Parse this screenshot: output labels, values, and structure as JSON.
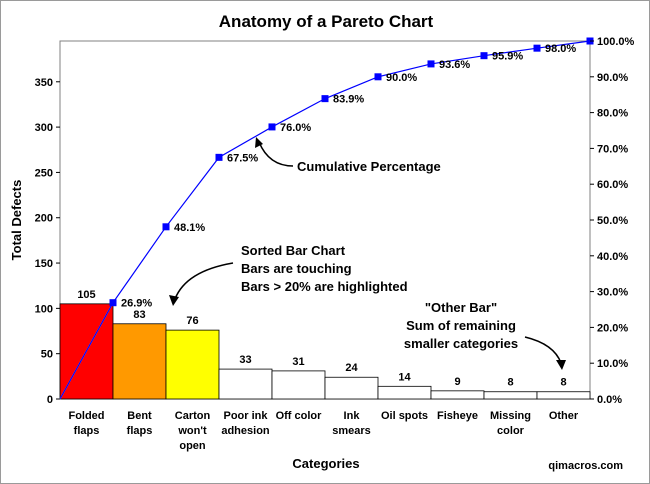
{
  "chart_data": {
    "type": "bar",
    "title": "Anatomy of a Pareto Chart",
    "xlabel": "Categories",
    "ylabel": "Total Defects",
    "ylim": [
      0,
      395
    ],
    "y_ticks": [
      0,
      50,
      100,
      150,
      200,
      250,
      300,
      350
    ],
    "y2lim": [
      0,
      100
    ],
    "y2_ticks": [
      "0.0%",
      "10.0%",
      "20.0%",
      "30.0%",
      "40.0%",
      "50.0%",
      "60.0%",
      "70.0%",
      "80.0%",
      "90.0%",
      "100.0%"
    ],
    "categories": [
      [
        "Folded",
        "flaps"
      ],
      [
        "Bent",
        "flaps"
      ],
      [
        "Carton",
        "won't",
        "open"
      ],
      [
        "Poor ink",
        "adhesion"
      ],
      [
        "Off color"
      ],
      [
        "Ink",
        "smears"
      ],
      [
        "Oil spots"
      ],
      [
        "Fisheye"
      ],
      [
        "Missing",
        "color"
      ],
      [
        "Other"
      ]
    ],
    "series": [
      {
        "type": "bar",
        "values": [
          105,
          83,
          76,
          33,
          31,
          24,
          14,
          9,
          8,
          8
        ],
        "colors": [
          "#ff0000",
          "#ff9900",
          "#ffff00",
          "#ffffff",
          "#ffffff",
          "#ffffff",
          "#ffffff",
          "#ffffff",
          "#ffffff",
          "#ffffff"
        ]
      },
      {
        "type": "line",
        "axis": "right",
        "values": [
          26.9,
          48.1,
          67.5,
          76.0,
          83.9,
          90.0,
          93.6,
          95.9,
          98.0,
          100.0
        ],
        "labels": [
          "26.9%",
          "48.1%",
          "67.5%",
          "76.0%",
          "83.9%",
          "90.0%",
          "93.6%",
          "95.9%",
          "98.0%",
          ""
        ],
        "color": "#0000ff"
      }
    ],
    "annotations": {
      "cumulative": "Cumulative Percentage",
      "sorted": [
        "Sorted Bar Chart",
        "Bars are touching",
        "Bars > 20% are highlighted"
      ],
      "other": [
        "\"Other Bar\"",
        "Sum of remaining",
        "smaller categories"
      ]
    },
    "credit": "qimacros.com"
  },
  "colors": {
    "line": "#0000ff",
    "arrow": "#000000",
    "border": "#9a9a9a"
  }
}
